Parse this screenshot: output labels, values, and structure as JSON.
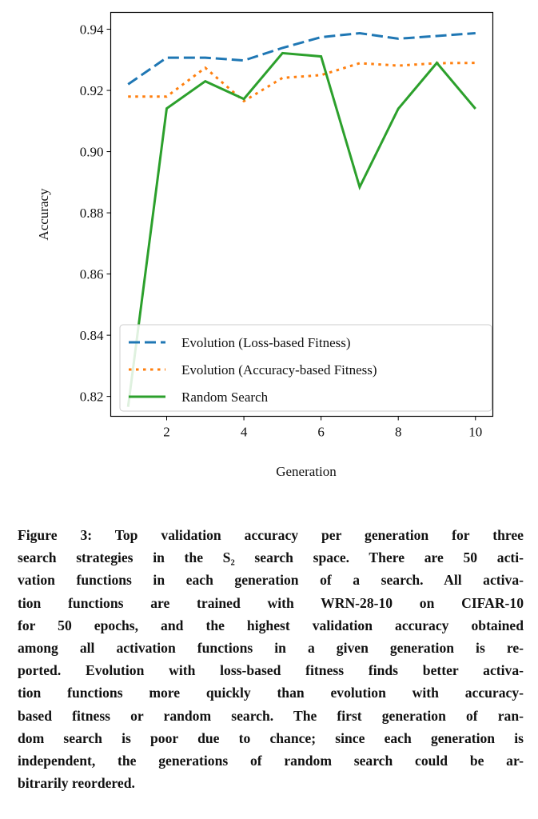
{
  "chart_data": {
    "type": "line",
    "title": "",
    "xlabel": "Generation",
    "ylabel": "Accuracy",
    "x": [
      1,
      2,
      3,
      4,
      5,
      6,
      7,
      8,
      9,
      10
    ],
    "xlim": [
      0.55,
      10.45
    ],
    "ylim": [
      0.8135,
      0.9455
    ],
    "xticks": [
      2,
      4,
      6,
      8,
      10
    ],
    "xtick_labels": [
      "2",
      "4",
      "6",
      "8",
      "10"
    ],
    "yticks": [
      0.82,
      0.84,
      0.86,
      0.88,
      0.9,
      0.92,
      0.94
    ],
    "ytick_labels": [
      "0.82",
      "0.84",
      "0.86",
      "0.88",
      "0.90",
      "0.92",
      "0.94"
    ],
    "grid": false,
    "legend_position": "lower-right",
    "series": [
      {
        "name": "Evolution (Loss-based Fitness)",
        "color": "#1f77b4",
        "style": "dashed",
        "values": [
          0.922,
          0.9307,
          0.9307,
          0.9298,
          0.9339,
          0.9374,
          0.9387,
          0.9369,
          0.9378,
          0.9387
        ]
      },
      {
        "name": "Evolution (Accuracy-based Fitness)",
        "color": "#ff7f0e",
        "style": "dotted",
        "values": [
          0.918,
          0.918,
          0.9274,
          0.9165,
          0.9241,
          0.925,
          0.9289,
          0.9281,
          0.9289,
          0.929
        ]
      },
      {
        "name": "Random Search",
        "color": "#2ca02c",
        "style": "solid",
        "values": [
          0.8166,
          0.9141,
          0.923,
          0.9172,
          0.9322,
          0.9311,
          0.8884,
          0.914,
          0.929,
          0.914
        ]
      }
    ]
  },
  "caption": {
    "lines": [
      "Figure 3: Top validation accuracy per generation for three",
      "search strategies in the S₂ search space. There are 50 acti-",
      "vation functions in each generation of a search. All activa-",
      "tion functions are trained with WRN-28-10 on CIFAR-10",
      "for 50 epochs, and the highest validation accuracy obtained",
      "among all activation functions in a given generation is re-",
      "ported. Evolution with loss-based fitness finds better activa-",
      "tion functions more quickly than evolution with accuracy-",
      "based fitness or random search. The first generation of ran-",
      "dom search is poor due to chance; since each generation is",
      "independent, the generations of random search could be ar-",
      "bitrarily reordered."
    ]
  }
}
